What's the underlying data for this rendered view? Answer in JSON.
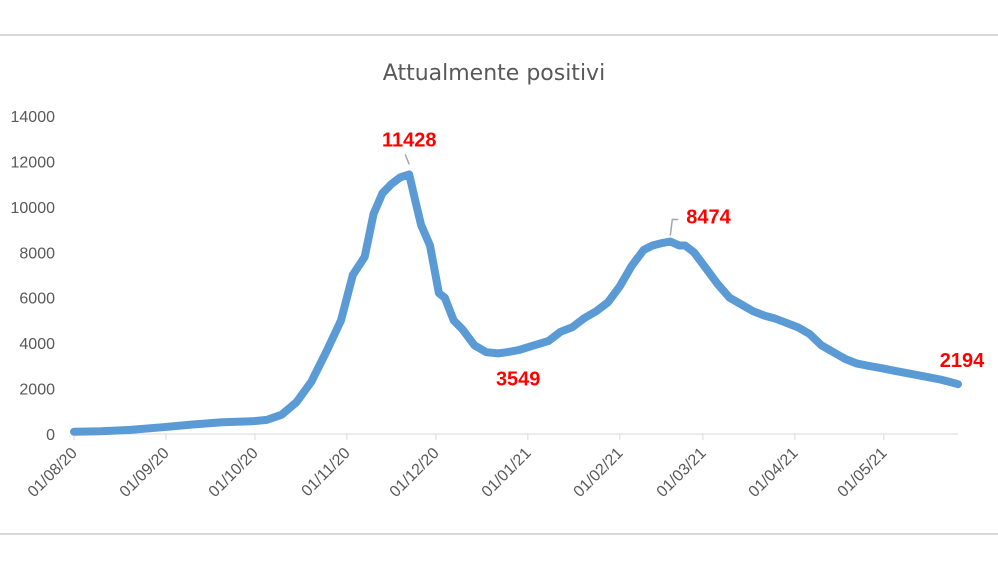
{
  "chart_data": {
    "type": "line",
    "title": "Attualmente positivi",
    "xlabel": "",
    "ylabel": "",
    "ylim": [
      0,
      14000
    ],
    "yticks": [
      0,
      2000,
      4000,
      6000,
      8000,
      10000,
      12000,
      14000
    ],
    "ytick_labels": [
      "0",
      "2000",
      "4000",
      "6000",
      "8000",
      "10000",
      "12000",
      "14000"
    ],
    "xlim": [
      "2020-08-01",
      "2021-05-26"
    ],
    "xticks": [
      "2020-08-01",
      "2020-09-01",
      "2020-10-01",
      "2020-11-01",
      "2020-12-01",
      "2021-01-01",
      "2021-02-01",
      "2021-03-01",
      "2021-04-01",
      "2021-05-01"
    ],
    "xtick_labels": [
      "01/08/20",
      "01/09/20",
      "01/10/20",
      "01/11/20",
      "01/12/20",
      "01/01/21",
      "01/02/21",
      "01/03/21",
      "01/04/21",
      "01/05/21"
    ],
    "grid": false,
    "legend": "none",
    "color": "#5b9bd5",
    "label_color": "#ff0000",
    "series": [
      {
        "x": [
          "2020-08-01",
          "2020-08-10",
          "2020-08-20",
          "2020-08-31",
          "2020-09-10",
          "2020-09-20",
          "2020-09-30",
          "2020-10-05",
          "2020-10-10",
          "2020-10-15",
          "2020-10-20",
          "2020-10-25",
          "2020-10-30",
          "2020-11-03",
          "2020-11-07",
          "2020-11-10",
          "2020-11-13",
          "2020-11-16",
          "2020-11-19",
          "2020-11-22",
          "2020-11-24",
          "2020-11-26",
          "2020-11-29",
          "2020-12-02",
          "2020-12-04",
          "2020-12-07",
          "2020-12-10",
          "2020-12-14",
          "2020-12-18",
          "2020-12-22",
          "2020-12-25",
          "2020-12-29",
          "2021-01-03",
          "2021-01-08",
          "2021-01-12",
          "2021-01-16",
          "2021-01-20",
          "2021-01-24",
          "2021-01-28",
          "2021-02-01",
          "2021-02-05",
          "2021-02-09",
          "2021-02-12",
          "2021-02-15",
          "2021-02-18",
          "2021-02-21",
          "2021-02-23",
          "2021-02-26",
          "2021-03-02",
          "2021-03-06",
          "2021-03-10",
          "2021-03-14",
          "2021-03-18",
          "2021-03-22",
          "2021-03-25",
          "2021-03-29",
          "2021-04-02",
          "2021-04-06",
          "2021-04-10",
          "2021-04-14",
          "2021-04-18",
          "2021-04-22",
          "2021-04-26",
          "2021-04-30",
          "2021-05-04",
          "2021-05-08",
          "2021-05-12",
          "2021-05-16",
          "2021-05-20",
          "2021-05-23",
          "2021-05-26"
        ],
        "y": [
          100,
          120,
          180,
          300,
          420,
          520,
          560,
          620,
          850,
          1400,
          2300,
          3600,
          5000,
          7000,
          7800,
          9700,
          10600,
          11000,
          11300,
          11428,
          10300,
          9200,
          8300,
          6200,
          6000,
          5000,
          4600,
          3900,
          3600,
          3549,
          3600,
          3700,
          3900,
          4100,
          4500,
          4700,
          5100,
          5400,
          5800,
          6500,
          7400,
          8100,
          8300,
          8400,
          8474,
          8300,
          8300,
          8000,
          7300,
          6600,
          6000,
          5700,
          5400,
          5200,
          5100,
          4900,
          4700,
          4400,
          3900,
          3600,
          3300,
          3100,
          3000,
          2900,
          2800,
          2700,
          2600,
          2500,
          2400,
          2300,
          2194
        ]
      }
    ],
    "annotations": [
      {
        "text": "11428",
        "x": "2020-11-22",
        "y": 11428
      },
      {
        "text": "3549",
        "x": "2020-12-22",
        "y": 3549
      },
      {
        "text": "8474",
        "x": "2021-02-18",
        "y": 8474
      },
      {
        "text": "2194",
        "x": "2021-05-26",
        "y": 2194
      }
    ]
  }
}
